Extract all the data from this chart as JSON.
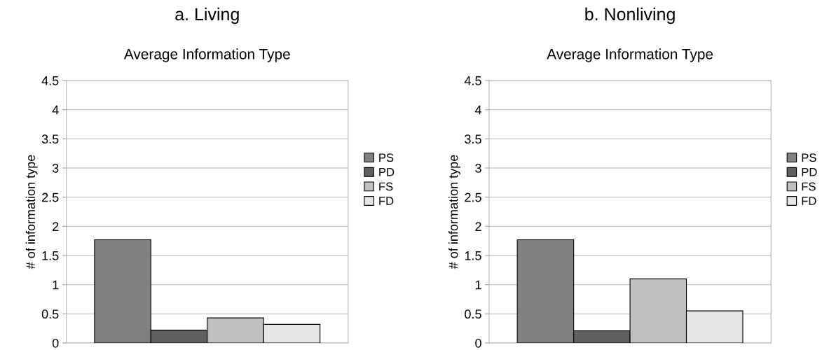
{
  "chart_data": [
    {
      "type": "bar",
      "title": "a. Living",
      "subtitle": "Average Information Type",
      "ylabel": "# of information type",
      "categories": [
        null
      ],
      "series": [
        {
          "name": "PS",
          "color": "#808080",
          "values": [
            1.77
          ]
        },
        {
          "name": "PD",
          "color": "#5f5f5f",
          "values": [
            0.22
          ]
        },
        {
          "name": "FS",
          "color": "#c0c0c0",
          "values": [
            0.43
          ]
        },
        {
          "name": "FD",
          "color": "#e6e6e6",
          "values": [
            0.32
          ]
        }
      ],
      "ylim": [
        0,
        4.5
      ],
      "yticks": [
        0,
        0.5,
        1,
        1.5,
        2,
        2.5,
        3,
        3.5,
        4,
        4.5
      ],
      "grid": "y",
      "legend": "right"
    },
    {
      "type": "bar",
      "title": "b. Nonliving",
      "subtitle": "Average Information Type",
      "ylabel": "# of information type",
      "categories": [
        null
      ],
      "series": [
        {
          "name": "PS",
          "color": "#808080",
          "values": [
            1.77
          ]
        },
        {
          "name": "PD",
          "color": "#5f5f5f",
          "values": [
            0.21
          ]
        },
        {
          "name": "FS",
          "color": "#c0c0c0",
          "values": [
            1.1
          ]
        },
        {
          "name": "FD",
          "color": "#e6e6e6",
          "values": [
            0.55
          ]
        }
      ],
      "ylim": [
        0,
        4.5
      ],
      "yticks": [
        0,
        0.5,
        1,
        1.5,
        2,
        2.5,
        3,
        3.5,
        4,
        4.5
      ],
      "grid": "y",
      "legend": "right"
    }
  ]
}
